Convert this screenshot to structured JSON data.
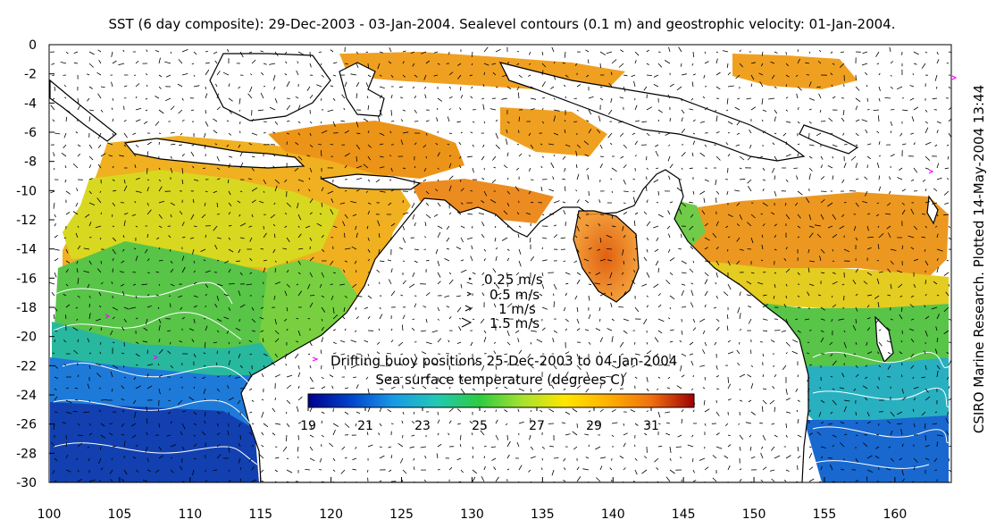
{
  "title": "SST (6 day composite): 29-Dec-2003 - 03-Jan-2004. Sealevel contours (0.1 m) and geostrophic velocity: 01-Jan-2004.",
  "credit": "CSIRO Marine Research. Plotted 14-May-2004 13:44",
  "velocity_key": {
    "labels": [
      "0.25 m/s",
      "0.5 m/s",
      "1 m/s",
      "1.5 m/s"
    ]
  },
  "buoy_legend": {
    "label": "Drifting buoy positions 25-Dec-2003 to 04-Jan-2004",
    "marker_color": "#ff00ff"
  },
  "colorbar": {
    "title": "Sea surface temperature (degrees C)",
    "range": [
      19,
      32.5
    ],
    "tick_labels": [
      "19",
      "21",
      "23",
      "25",
      "27",
      "29",
      "31"
    ],
    "colors": [
      "#00008c",
      "#0044cc",
      "#1a9ae6",
      "#22c8b4",
      "#2ecc40",
      "#a6e22e",
      "#ffe600",
      "#ffb000",
      "#f07010",
      "#a00000"
    ]
  },
  "axes": {
    "x_range": [
      100,
      164
    ],
    "y_range": [
      -30,
      0
    ],
    "x_tick_labels": [
      "100",
      "105",
      "110",
      "115",
      "120",
      "125",
      "130",
      "135",
      "140",
      "145",
      "150",
      "155",
      "160"
    ],
    "y_tick_labels": [
      "0",
      "-2",
      "-4",
      "-6",
      "-8",
      "-10",
      "-12",
      "-14",
      "-16",
      "-18",
      "-20",
      "-22",
      "-24",
      "-26",
      "-28",
      "-30"
    ]
  },
  "colors": {
    "land": "#ffffff",
    "coastline": "#000000",
    "contour": "#ffffff",
    "arrow": "#000000"
  }
}
